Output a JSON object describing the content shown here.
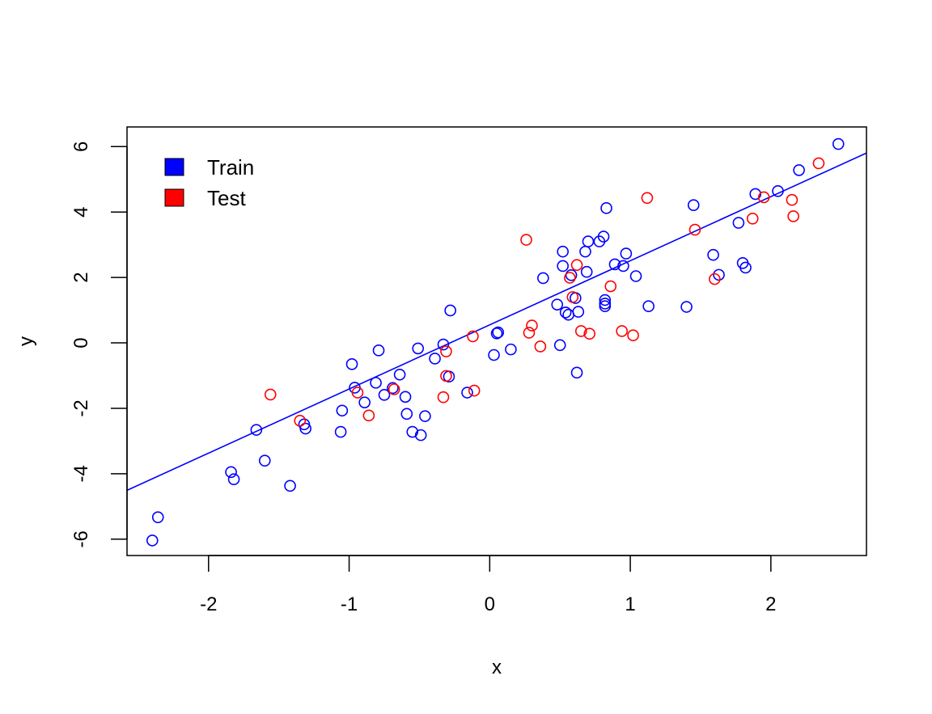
{
  "chart_data": {
    "type": "scatter",
    "title": "",
    "xlabel": "x",
    "ylabel": "y",
    "xlim": [
      -2.58,
      2.68
    ],
    "ylim": [
      -6.5,
      6.6
    ],
    "xticks": [
      -2,
      -1,
      0,
      1,
      2
    ],
    "yticks": [
      -6,
      -4,
      -2,
      0,
      2,
      4,
      6
    ],
    "legend_position": "top-left",
    "series": [
      {
        "name": "Train",
        "color": "#0000ff",
        "points": [
          [
            -2.4,
            -6.04
          ],
          [
            -2.36,
            -5.33
          ],
          [
            -1.84,
            -3.95
          ],
          [
            -1.82,
            -4.17
          ],
          [
            -1.66,
            -2.66
          ],
          [
            -1.6,
            -3.6
          ],
          [
            -1.42,
            -4.37
          ],
          [
            -1.32,
            -2.49
          ],
          [
            -1.31,
            -2.62
          ],
          [
            -1.06,
            -2.72
          ],
          [
            -1.05,
            -2.07
          ],
          [
            -0.98,
            -0.65
          ],
          [
            -0.96,
            -1.37
          ],
          [
            -0.89,
            -1.82
          ],
          [
            -0.81,
            -1.22
          ],
          [
            -0.79,
            -0.23
          ],
          [
            -0.75,
            -1.59
          ],
          [
            -0.69,
            -1.38
          ],
          [
            -0.64,
            -0.97
          ],
          [
            -0.6,
            -1.65
          ],
          [
            -0.59,
            -2.17
          ],
          [
            -0.55,
            -2.72
          ],
          [
            -0.51,
            -0.17
          ],
          [
            -0.49,
            -2.82
          ],
          [
            -0.46,
            -2.24
          ],
          [
            -0.39,
            -0.48
          ],
          [
            -0.33,
            -0.05
          ],
          [
            -0.29,
            -1.03
          ],
          [
            -0.28,
            0.99
          ],
          [
            -0.16,
            -1.52
          ],
          [
            0.03,
            -0.37
          ],
          [
            0.05,
            0.29
          ],
          [
            0.06,
            0.32
          ],
          [
            0.15,
            -0.2
          ],
          [
            0.38,
            1.98
          ],
          [
            0.48,
            1.17
          ],
          [
            0.5,
            -0.07
          ],
          [
            0.52,
            2.79
          ],
          [
            0.52,
            2.35
          ],
          [
            0.54,
            0.93
          ],
          [
            0.56,
            0.86
          ],
          [
            0.58,
            2.07
          ],
          [
            0.61,
            1.37
          ],
          [
            0.62,
            -0.91
          ],
          [
            0.63,
            0.95
          ],
          [
            0.68,
            2.79
          ],
          [
            0.69,
            2.17
          ],
          [
            0.7,
            3.1
          ],
          [
            0.78,
            3.1
          ],
          [
            0.81,
            3.25
          ],
          [
            0.82,
            1.12
          ],
          [
            0.82,
            1.2
          ],
          [
            0.82,
            1.31
          ],
          [
            0.83,
            4.12
          ],
          [
            0.89,
            2.4
          ],
          [
            0.95,
            2.35
          ],
          [
            0.97,
            2.73
          ],
          [
            1.04,
            2.04
          ],
          [
            1.13,
            1.12
          ],
          [
            1.4,
            1.1
          ],
          [
            1.45,
            4.21
          ],
          [
            1.59,
            2.69
          ],
          [
            1.63,
            2.08
          ],
          [
            1.77,
            3.67
          ],
          [
            1.8,
            2.44
          ],
          [
            1.82,
            2.3
          ],
          [
            1.89,
            4.55
          ],
          [
            2.05,
            4.64
          ],
          [
            2.2,
            5.28
          ],
          [
            2.48,
            6.08
          ]
        ]
      },
      {
        "name": "Test",
        "color": "#ff0000",
        "points": [
          [
            -1.56,
            -1.58
          ],
          [
            -1.35,
            -2.38
          ],
          [
            -0.94,
            -1.52
          ],
          [
            -0.86,
            -2.22
          ],
          [
            -0.68,
            -1.42
          ],
          [
            -0.33,
            -1.66
          ],
          [
            -0.31,
            -0.26
          ],
          [
            -0.31,
            -1.01
          ],
          [
            -0.12,
            0.2
          ],
          [
            -0.11,
            -1.46
          ],
          [
            0.26,
            3.15
          ],
          [
            0.28,
            0.31
          ],
          [
            0.3,
            0.53
          ],
          [
            0.36,
            -0.11
          ],
          [
            0.57,
            1.99
          ],
          [
            0.59,
            1.4
          ],
          [
            0.62,
            2.38
          ],
          [
            0.65,
            0.36
          ],
          [
            0.71,
            0.28
          ],
          [
            0.86,
            1.73
          ],
          [
            0.94,
            0.36
          ],
          [
            1.02,
            0.23
          ],
          [
            1.12,
            4.43
          ],
          [
            1.46,
            3.46
          ],
          [
            1.6,
            1.95
          ],
          [
            1.87,
            3.8
          ],
          [
            1.95,
            4.45
          ],
          [
            2.15,
            4.37
          ],
          [
            2.16,
            3.87
          ],
          [
            2.34,
            5.49
          ]
        ]
      }
    ],
    "fit_line": {
      "color": "#0000ff",
      "intercept": 0.55,
      "slope": 1.96
    }
  }
}
